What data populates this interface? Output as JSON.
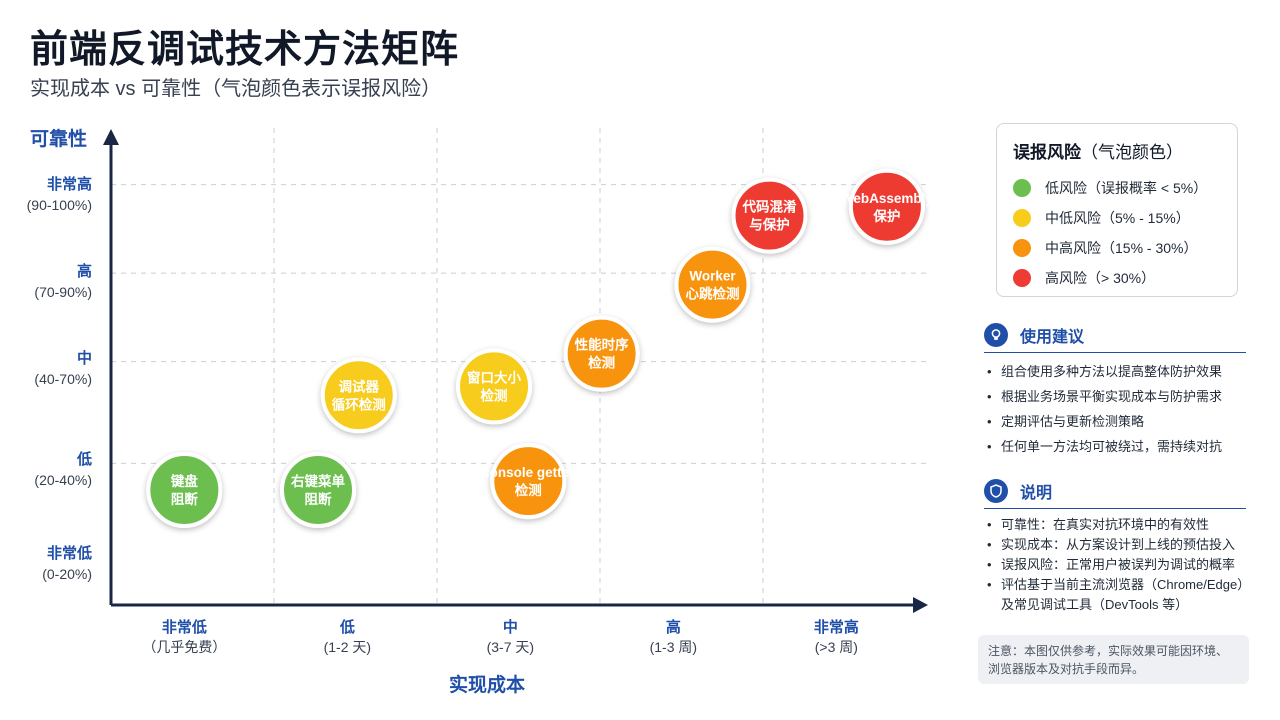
{
  "title": "前端反调试技术方法矩阵",
  "subtitle": "实现成本 vs 可靠性（气泡颜色表示误报风险）",
  "colors": {
    "axis": "#1a2744",
    "accent": "#1f4fa8",
    "low": "#6cbf4f",
    "mid_low": "#f8cc1b",
    "mid_high": "#f7930f",
    "high": "#ee3b33"
  },
  "chart_data": {
    "type": "scatter",
    "x_axis": {
      "label": "实现成本",
      "ticks": [
        {
          "main": "非常低",
          "sub": "（几乎免费）"
        },
        {
          "main": "低",
          "sub": "(1-2 天)"
        },
        {
          "main": "中",
          "sub": "(3-7 天)"
        },
        {
          "main": "高",
          "sub": "(1-3 周)"
        },
        {
          "main": "非常高",
          "sub": "(>3 周)"
        }
      ],
      "range": [
        0,
        5
      ]
    },
    "y_axis": {
      "label": "可靠性",
      "ticks": [
        {
          "main": "非常低",
          "sub": "(0-20%)"
        },
        {
          "main": "低",
          "sub": "(20-40%)"
        },
        {
          "main": "中",
          "sub": "(40-70%)"
        },
        {
          "main": "高",
          "sub": "(70-90%)"
        },
        {
          "main": "非常高",
          "sub": "(90-100%)"
        }
      ],
      "range": [
        0,
        5
      ]
    },
    "grid": true,
    "legend_position": "top-right",
    "points": [
      {
        "label": [
          "键盘",
          "阻断"
        ],
        "x": 0.45,
        "y": 1.3,
        "risk": "low"
      },
      {
        "label": [
          "右键菜单",
          "阻断"
        ],
        "x": 1.27,
        "y": 1.3,
        "risk": "low"
      },
      {
        "label": [
          "调试器",
          "循环检测"
        ],
        "x": 1.52,
        "y": 2.37,
        "risk": "mid_low"
      },
      {
        "label": [
          "窗口大小",
          "检测"
        ],
        "x": 2.35,
        "y": 2.47,
        "risk": "mid_low"
      },
      {
        "label": [
          "console getter",
          "检测"
        ],
        "x": 2.56,
        "y": 1.4,
        "risk": "mid_high"
      },
      {
        "label": [
          "性能时序",
          "检测"
        ],
        "x": 3.01,
        "y": 2.84,
        "risk": "mid_high"
      },
      {
        "label": [
          "Worker",
          "心跳检测"
        ],
        "x": 3.69,
        "y": 3.62,
        "risk": "mid_high"
      },
      {
        "label": [
          "代码混淆",
          "与保护"
        ],
        "x": 4.04,
        "y": 4.4,
        "risk": "high"
      },
      {
        "label": [
          "WebAssembly",
          "保护"
        ],
        "x": 4.76,
        "y": 4.5,
        "risk": "high"
      }
    ]
  },
  "legend": {
    "title": "误报风险",
    "title_paren": "（气泡颜色）",
    "items": [
      {
        "key": "low",
        "label": "低风险（误报概率 < 5%）"
      },
      {
        "key": "mid_low",
        "label": "中低风险（5% - 15%）"
      },
      {
        "key": "mid_high",
        "label": "中高风险（15% - 30%）"
      },
      {
        "key": "high",
        "label": "高风险（> 30%）"
      }
    ]
  },
  "usage": {
    "title": "使用建议",
    "icon": "lightbulb-icon",
    "items": [
      "组合使用多种方法以提高整体防护效果",
      "根据业务场景平衡实现成本与防护需求",
      "定期评估与更新检测策略",
      "任何单一方法均可被绕过，需持续对抗"
    ]
  },
  "notes": {
    "title": "说明",
    "icon": "shield-icon",
    "items": [
      "可靠性：在真实对抗环境中的有效性",
      "实现成本：从方案设计到上线的预估投入",
      "误报风险：正常用户被误判为调试的概率",
      "评估基于当前主流浏览器（Chrome/Edge）及常见调试工具（DevTools 等）"
    ]
  },
  "disclaimer": "注意：本图仅供参考，实际效果可能因环境、浏览器版本及对抗手段而异。"
}
